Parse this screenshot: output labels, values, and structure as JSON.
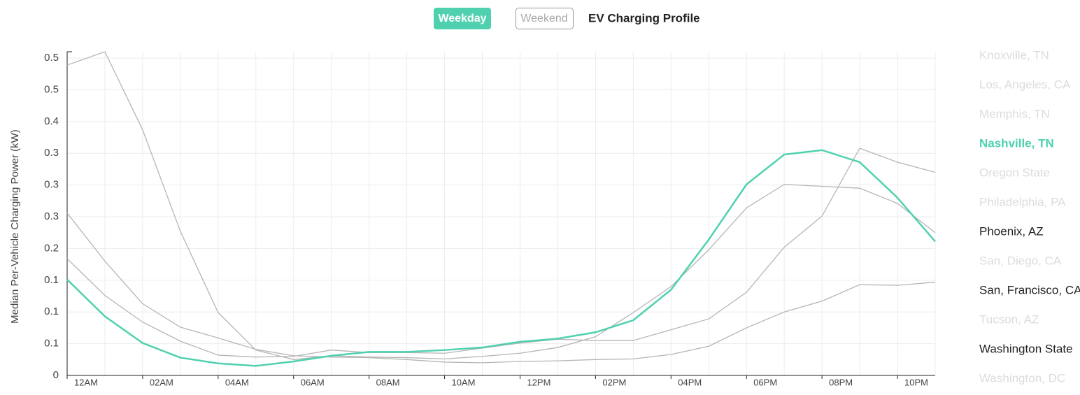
{
  "controls": {
    "weekday": "Weekday",
    "weekend": "Weekend",
    "active": "weekday"
  },
  "chart_data": {
    "type": "line",
    "title": "EV Charging Profile",
    "y_label": "Median Per-Vehicle Charging Power (kW)",
    "x": [
      0,
      1,
      2,
      3,
      4,
      5,
      6,
      7,
      8,
      9,
      10,
      11,
      12,
      13,
      14,
      15,
      16,
      17,
      18,
      19,
      20,
      21,
      22,
      23
    ],
    "xlim": [
      0,
      23
    ],
    "xticks": [
      {
        "value": 0,
        "label": "12AM"
      },
      {
        "value": 2,
        "label": "02AM"
      },
      {
        "value": 4,
        "label": "04AM"
      },
      {
        "value": 6,
        "label": "06AM"
      },
      {
        "value": 8,
        "label": "08AM"
      },
      {
        "value": 10,
        "label": "10AM"
      },
      {
        "value": 12,
        "label": "12PM"
      },
      {
        "value": 14,
        "label": "02PM"
      },
      {
        "value": 16,
        "label": "04PM"
      },
      {
        "value": 18,
        "label": "06PM"
      },
      {
        "value": 20,
        "label": "08PM"
      },
      {
        "value": 22,
        "label": "10PM"
      }
    ],
    "xgrid_step": 1,
    "ylim": [
      0,
      0.51
    ],
    "yticks": [
      0,
      {
        "value": 0.05,
        "label": "0.1"
      },
      {
        "value": 0.1,
        "label": "0.1"
      },
      {
        "value": 0.15,
        "label": "0.1"
      },
      {
        "value": 0.2,
        "label": "0.2"
      },
      {
        "value": 0.25,
        "label": "0.3"
      },
      {
        "value": 0.3,
        "label": "0.3"
      },
      {
        "value": 0.35,
        "label": "0.3"
      },
      {
        "value": 0.4,
        "label": "0.4"
      },
      {
        "value": 0.45,
        "label": "0.5"
      },
      {
        "value": 0.5,
        "label": "0.5"
      }
    ],
    "grid": true,
    "legend": "right",
    "series": [
      {
        "name": "Knoxville, TN",
        "color": "#dcdcdc"
      },
      {
        "name": "Los, Angeles, CA",
        "color": "#dcdcdc"
      },
      {
        "name": "Memphis, TN",
        "color": "#dcdcdc"
      },
      {
        "name": "Nashville, TN",
        "color": "#4fd1b0",
        "line_color": "#4fd1b0",
        "line_width": 2.5,
        "values": [
          0.151,
          0.093,
          0.051,
          0.028,
          0.019,
          0.015,
          0.022,
          0.031,
          0.037,
          0.037,
          0.04,
          0.044,
          0.053,
          0.058,
          0.068,
          0.087,
          0.135,
          0.214,
          0.301,
          0.348,
          0.355,
          0.336,
          0.28,
          0.211
        ]
      },
      {
        "name": "Oregon State",
        "color": "#dcdcdc"
      },
      {
        "name": "Philadelphia, PA",
        "color": "#dcdcdc"
      },
      {
        "name": "Phoenix, AZ",
        "color": "#222222",
        "line_color": "#b5b5b5",
        "line_width": 1.3,
        "values": [
          0.489,
          0.51,
          0.387,
          0.227,
          0.099,
          0.04,
          0.025,
          0.031,
          0.029,
          0.028,
          0.026,
          0.03,
          0.035,
          0.044,
          0.061,
          0.099,
          0.14,
          0.198,
          0.264,
          0.301,
          0.298,
          0.295,
          0.271,
          0.225
        ]
      },
      {
        "name": "San, Diego, CA",
        "color": "#dcdcdc"
      },
      {
        "name": "San, Francisco, CA",
        "color": "#222222",
        "line_color": "#b5b5b5",
        "line_width": 1.3,
        "values": [
          0.184,
          0.126,
          0.084,
          0.054,
          0.032,
          0.029,
          0.03,
          0.04,
          0.036,
          0.036,
          0.035,
          0.043,
          0.051,
          0.057,
          0.055,
          0.055,
          0.072,
          0.089,
          0.131,
          0.202,
          0.251,
          0.358,
          0.336,
          0.32
        ]
      },
      {
        "name": "Tucson, AZ",
        "color": "#dcdcdc"
      },
      {
        "name": "Washington State",
        "color": "#222222",
        "line_color": "#b5b5b5",
        "line_width": 1.3,
        "values": [
          0.256,
          0.18,
          0.113,
          0.076,
          0.059,
          0.041,
          0.031,
          0.029,
          0.028,
          0.025,
          0.021,
          0.02,
          0.022,
          0.023,
          0.025,
          0.026,
          0.033,
          0.046,
          0.075,
          0.1,
          0.117,
          0.143,
          0.142,
          0.147
        ]
      },
      {
        "name": "Washington, DC",
        "color": "#dcdcdc"
      }
    ]
  }
}
